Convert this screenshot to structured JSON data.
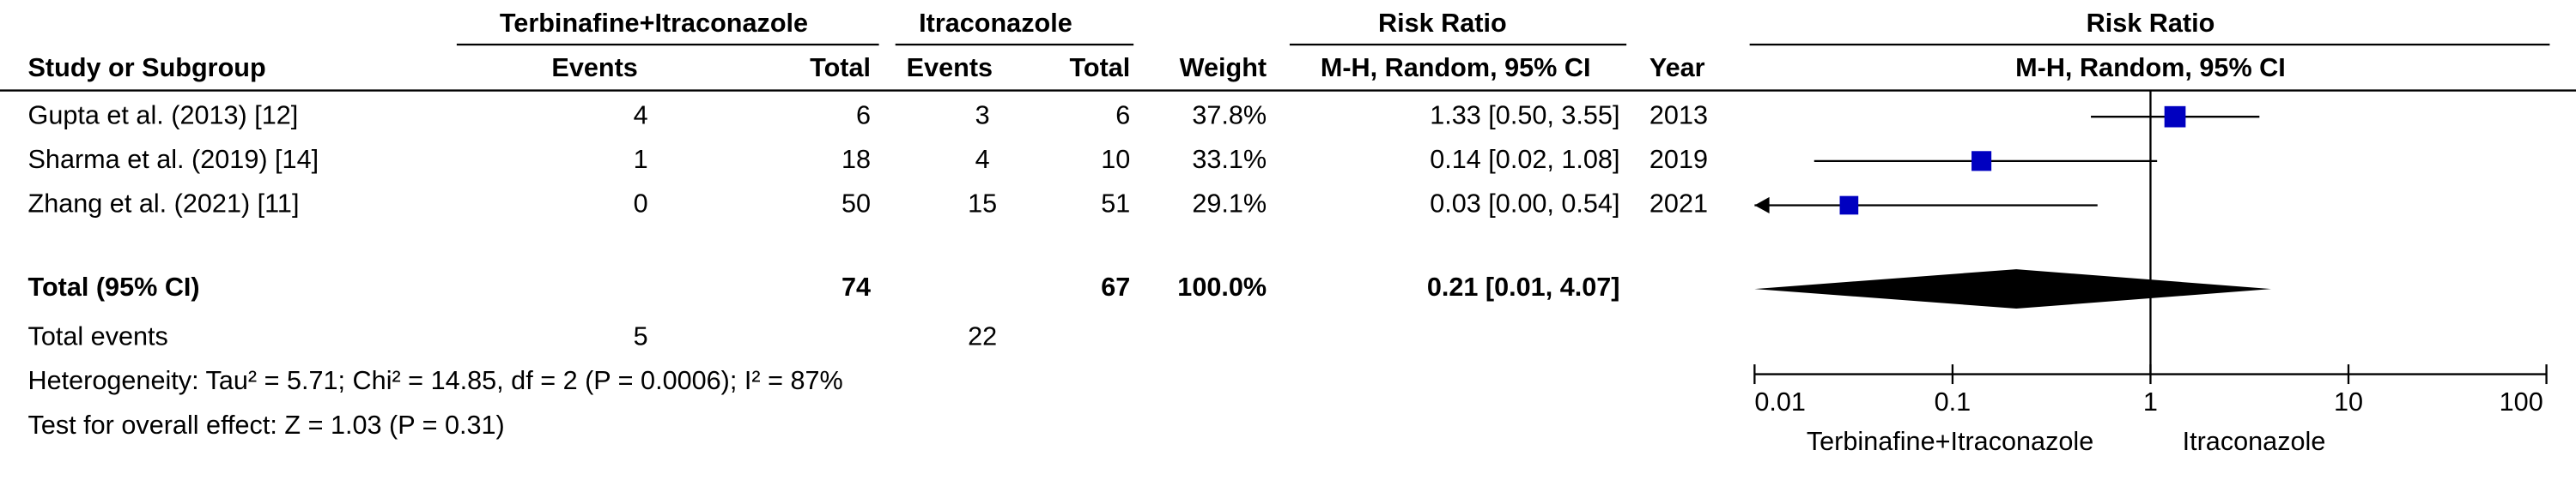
{
  "chart_data": {
    "type": "forest",
    "group_headers": [
      "Terbinafine+Itraconazole",
      "Itraconazole",
      "Risk Ratio",
      "Risk Ratio"
    ],
    "columns": [
      "Study or Subgroup",
      "Events",
      "Total",
      "Events",
      "Total",
      "Weight",
      "M-H, Random, 95% CI",
      "Year",
      "M-H, Random, 95% CI"
    ],
    "studies": [
      {
        "name": "Gupta et al. (2013) [12]",
        "events1": 4,
        "total1": 6,
        "events2": 3,
        "total2": 6,
        "weight": 37.8,
        "weight_label": "37.8%",
        "rr": 1.33,
        "lo": 0.5,
        "hi": 3.55,
        "ci_label": "1.33 [0.50, 3.55]",
        "year": "2013"
      },
      {
        "name": "Sharma et al. (2019) [14]",
        "events1": 1,
        "total1": 18,
        "events2": 4,
        "total2": 10,
        "weight": 33.1,
        "weight_label": "33.1%",
        "rr": 0.14,
        "lo": 0.02,
        "hi": 1.08,
        "ci_label": "0.14 [0.02, 1.08]",
        "year": "2019"
      },
      {
        "name": "Zhang et al. (2021) [11]",
        "events1": 0,
        "total1": 50,
        "events2": 15,
        "total2": 51,
        "weight": 29.1,
        "weight_label": "29.1%",
        "rr": 0.03,
        "lo": 0.0,
        "hi": 0.54,
        "ci_label": "0.03 [0.00, 0.54]",
        "year": "2021"
      }
    ],
    "total": {
      "name": "Total (95% CI)",
      "total1": 74,
      "total2": 67,
      "weight": 100.0,
      "weight_label": "100.0%",
      "rr": 0.21,
      "lo": 0.01,
      "hi": 4.07,
      "ci_label": "0.21 [0.01, 4.07]"
    },
    "total_events": {
      "name": "Total events",
      "events1": 5,
      "events2": 22
    },
    "heterogeneity": "Heterogeneity: Tau² = 5.71; Chi² = 14.85, df = 2 (P = 0.0006); I² = 87%",
    "overall_effect": "Test for overall effect: Z = 1.03 (P = 0.31)",
    "xlim": [
      0.01,
      100
    ],
    "xticks": [
      0.01,
      0.1,
      1,
      10,
      100
    ],
    "log_x": true,
    "favours": [
      "Terbinafine+Itraconazole",
      "Itraconazole"
    ],
    "marker_color": "#0000c0"
  }
}
